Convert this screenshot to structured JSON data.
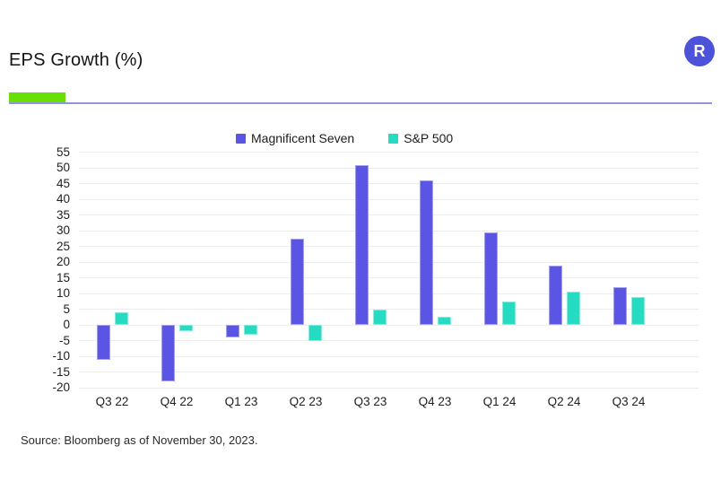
{
  "header": {
    "logo_letter": "R"
  },
  "source": "Source: Bloomberg as of November 30, 2023.",
  "colors": {
    "accent_green": "#68E003",
    "rule_purple": "#9095DB",
    "logo_purple": "#4C52D9",
    "grid": "#ECECEC",
    "mag7_purple": "#5B55E6",
    "sp500_teal": "#25DCC2"
  },
  "chart_data": {
    "type": "bar",
    "title": "EPS Growth (%)",
    "categories": [
      "Q3 22",
      "Q4 22",
      "Q1 23",
      "Q2 23",
      "Q3 23",
      "Q4 23",
      "Q1 24",
      "Q2 24",
      "Q3 24"
    ],
    "series": [
      {
        "name": "Magnificent Seven",
        "color": "#5B55E6",
        "values": [
          -11,
          -18,
          -4,
          27.5,
          51,
          46,
          29.5,
          19,
          12
        ]
      },
      {
        "name": "S&P 500",
        "color": "#25DCC2",
        "values": [
          4,
          -2,
          -3,
          -5,
          5,
          2.5,
          7.5,
          10.5,
          9
        ]
      }
    ],
    "xlabel": "",
    "ylabel": "",
    "ylim": [
      -20,
      55
    ],
    "ytick_step": 5,
    "grid": true,
    "legend_position": "top"
  }
}
